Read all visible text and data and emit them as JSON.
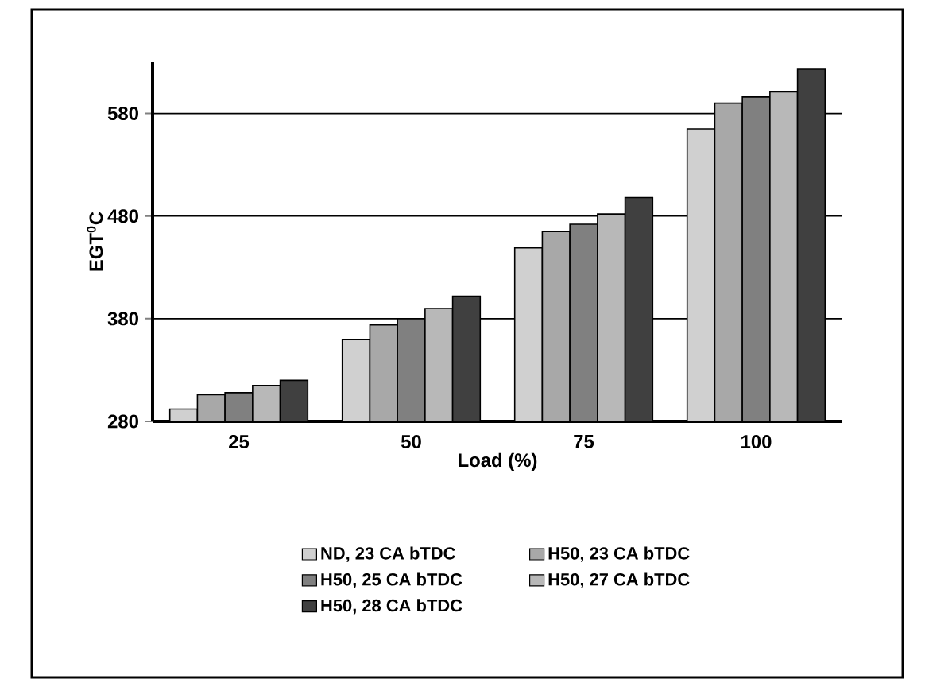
{
  "chart_data": {
    "type": "bar",
    "xlabel": "Load (%)",
    "ylabel": "EGT$^{0}$C",
    "categories": [
      "25",
      "50",
      "75",
      "100"
    ],
    "series": [
      {
        "name": "ND, 23 CA bTDC",
        "color": "#d0d0d0",
        "values": [
          292,
          360,
          449,
          565
        ]
      },
      {
        "name": "H50, 23 CA bTDC",
        "color": "#a8a8a8",
        "values": [
          306,
          374,
          465,
          590
        ]
      },
      {
        "name": "H50, 25 CA bTDC",
        "color": "#808080",
        "values": [
          308,
          380,
          472,
          596
        ]
      },
      {
        "name": "H50, 27 CA bTDC",
        "color": "#b8b8b8",
        "values": [
          315,
          390,
          482,
          601
        ]
      },
      {
        "name": "H50, 28 CA bTDC",
        "color": "#404040",
        "values": [
          320,
          402,
          498,
          623
        ]
      }
    ],
    "ylim": [
      280,
      630
    ],
    "yticks": [
      280,
      380,
      480,
      580
    ],
    "grid": "y",
    "legend": "bottom"
  }
}
